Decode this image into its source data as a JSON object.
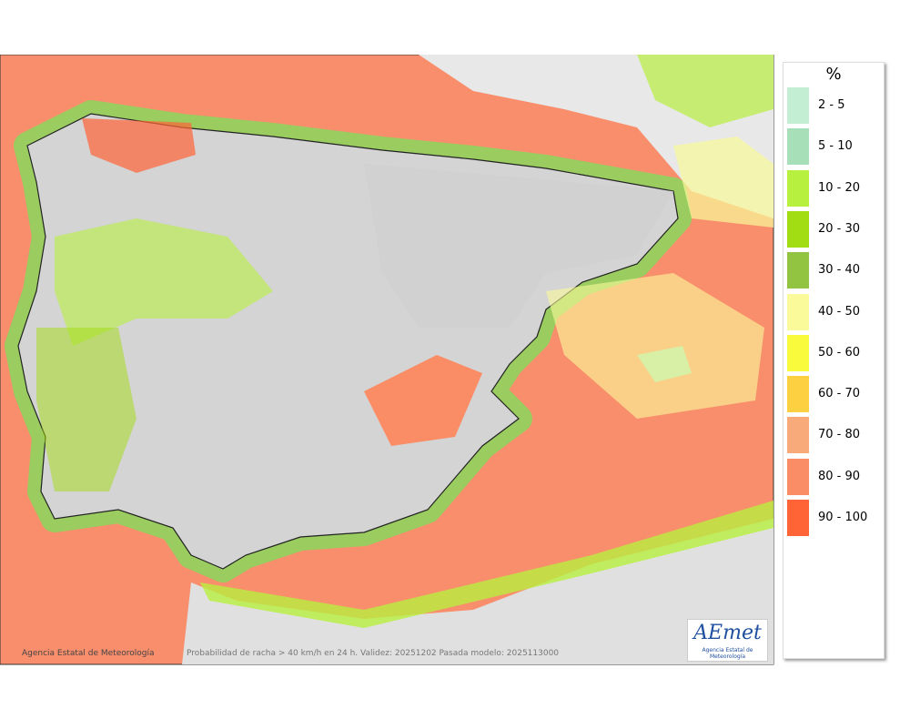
{
  "legend": {
    "title": "%",
    "items": [
      {
        "label": "2 - 5",
        "color": "#c4eed4"
      },
      {
        "label": "5 - 10",
        "color": "#a6dfb8"
      },
      {
        "label": "10 - 20",
        "color": "#b8f040"
      },
      {
        "label": "20 - 30",
        "color": "#a2dc12"
      },
      {
        "label": "30 - 40",
        "color": "#92c442"
      },
      {
        "label": "40 - 50",
        "color": "#fafa9a"
      },
      {
        "label": "50 - 60",
        "color": "#fafa3c"
      },
      {
        "label": "60 - 70",
        "color": "#fcd040"
      },
      {
        "label": "70 - 80",
        "color": "#f8aa7a"
      },
      {
        "label": "80 - 90",
        "color": "#fa8c66"
      },
      {
        "label": "90 - 100",
        "color": "#ff6436"
      }
    ]
  },
  "footer": {
    "credit": "Agencia Estatal de Meteorología",
    "caption": "Probabilidad de racha > 40 km/h en 24 h. Validez: 20251202 Pasada modelo: 2025113000"
  },
  "logo": {
    "name": "AEmet",
    "subtitle": "Agencia Estatal de Meteorología"
  }
}
